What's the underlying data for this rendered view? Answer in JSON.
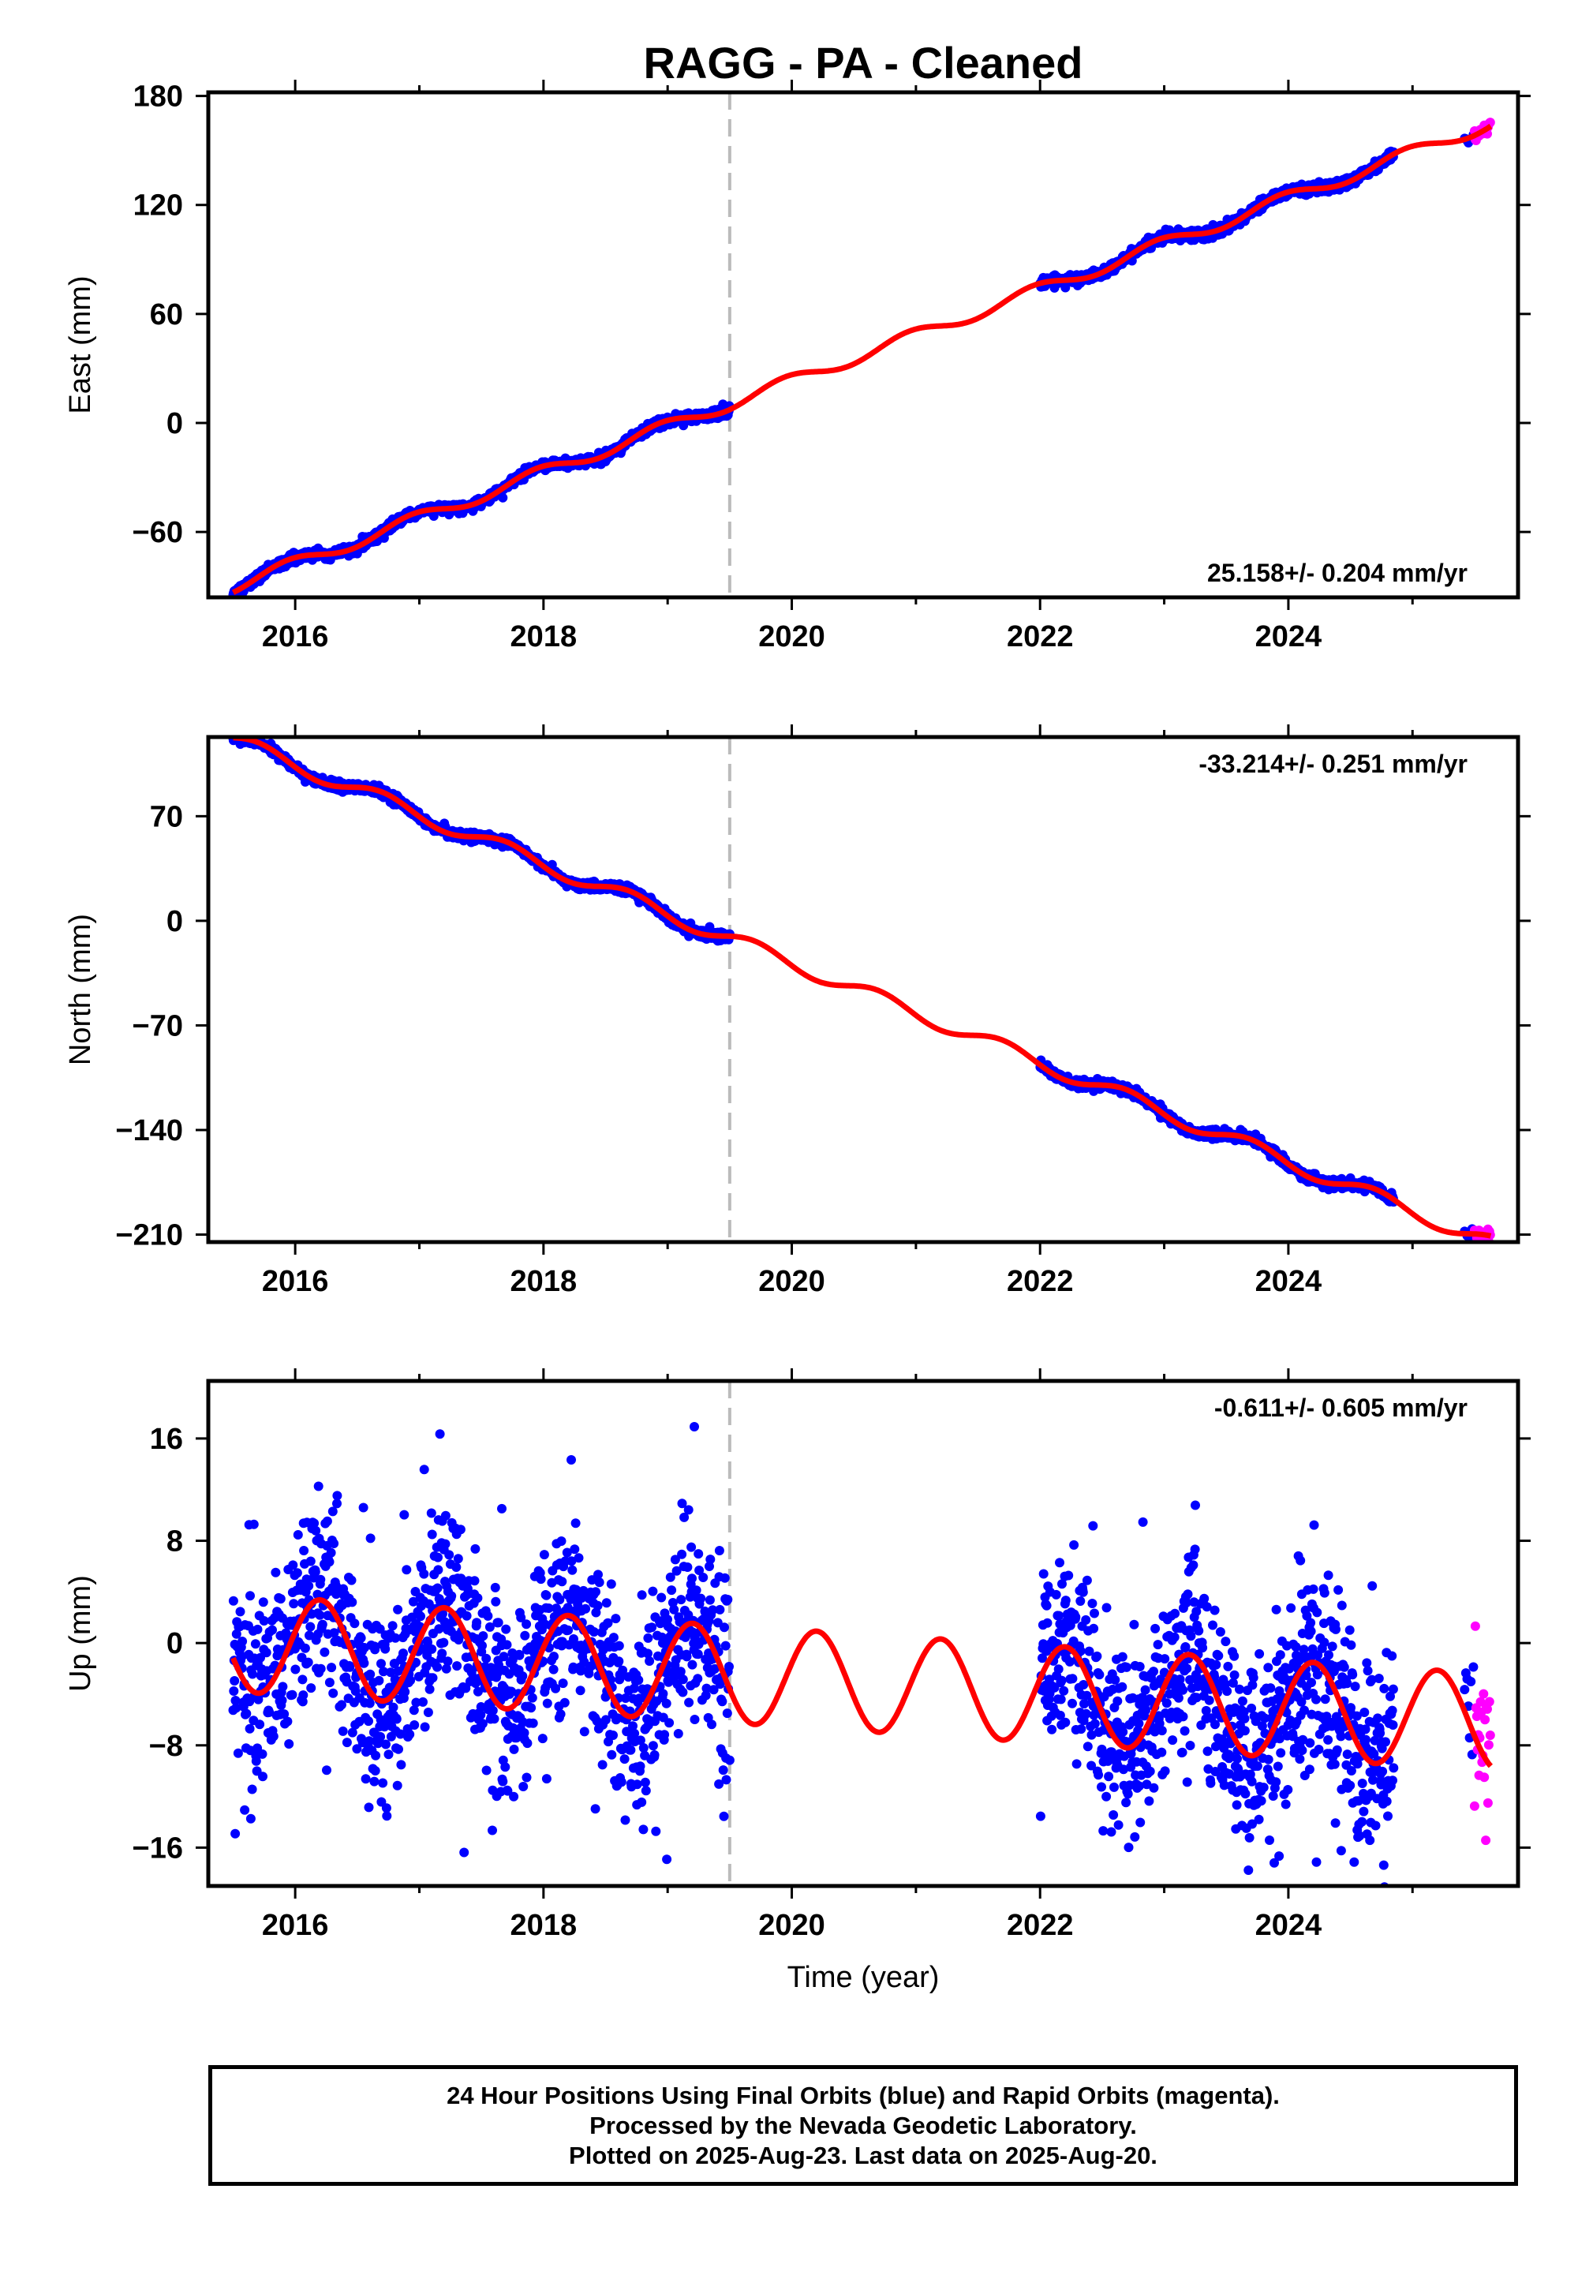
{
  "chart_data": [
    {
      "id": "east",
      "type": "scatter",
      "title": "RAGG  - PA - Cleaned",
      "ylabel": "East (mm)",
      "xlabel": "",
      "xlim": [
        2015.3,
        2025.85
      ],
      "ylim": [
        -96,
        182
      ],
      "yticks": [
        -60,
        0,
        60,
        120,
        180
      ],
      "xticks": [
        2016,
        2018,
        2020,
        2022,
        2024
      ],
      "rate_label": "25.158+/- 0.204 mm/yr",
      "rate_position": "bottom-right",
      "break_year": 2019.5,
      "grid": false,
      "trend": {
        "y0": -90,
        "x0": 2015.5,
        "rate": 25.158
      },
      "seasonal": {
        "amp": 3.5,
        "phase": 0.3
      },
      "noise_sd": 1.3,
      "gap": [
        2019.5,
        2022.0
      ],
      "final_range": [
        2015.5,
        2024.85
      ],
      "rapid_range": [
        2025.5,
        2025.63
      ],
      "series": [
        {
          "name": "Final Orbits",
          "color": "#0000ff",
          "kind": "points"
        },
        {
          "name": "Rapid Orbits",
          "color": "#ff00ff",
          "kind": "points"
        },
        {
          "name": "Model",
          "color": "#ff0000",
          "kind": "line"
        }
      ]
    },
    {
      "id": "north",
      "type": "scatter",
      "ylabel": "North (mm)",
      "xlabel": "",
      "xlim": [
        2015.3,
        2025.85
      ],
      "ylim": [
        -215,
        123
      ],
      "yticks": [
        -210,
        -140,
        -70,
        0,
        70
      ],
      "xticks": [
        2016,
        2018,
        2020,
        2022,
        2024
      ],
      "rate_label": "-33.214+/- 0.251 mm/yr",
      "rate_position": "top-right",
      "break_year": 2019.5,
      "grid": false,
      "trend": {
        "y0": 121,
        "x0": 2015.5,
        "rate": -33.214
      },
      "seasonal": {
        "amp": 5.0,
        "phase": 0.55
      },
      "noise_sd": 1.5,
      "gap": [
        2019.5,
        2022.0
      ],
      "final_range": [
        2015.5,
        2024.85
      ],
      "rapid_range": [
        2025.5,
        2025.63
      ],
      "series": [
        {
          "name": "Final Orbits",
          "color": "#0000ff",
          "kind": "points"
        },
        {
          "name": "Rapid Orbits",
          "color": "#ff00ff",
          "kind": "points"
        },
        {
          "name": "Model",
          "color": "#ff0000",
          "kind": "line"
        }
      ]
    },
    {
      "id": "up",
      "type": "scatter",
      "ylabel": "Up (mm)",
      "xlabel": "Time (year)",
      "xlim": [
        2015.3,
        2025.85
      ],
      "ylim": [
        -19,
        20.5
      ],
      "yticks": [
        -16,
        -8,
        0,
        8,
        16
      ],
      "xticks": [
        2016,
        2018,
        2020,
        2022,
        2024
      ],
      "rate_label": "-0.611+/- 0.605 mm/yr",
      "rate_position": "top-right",
      "break_year": 2019.5,
      "grid": false,
      "trend": {
        "y0": 0,
        "x0": 2015.5,
        "rate": -0.611
      },
      "seasonal": {
        "amp": 3.8,
        "phase": 0.05
      },
      "noise_sd": 3.6,
      "gap": [
        2019.5,
        2022.0
      ],
      "final_range": [
        2015.5,
        2024.85
      ],
      "rapid_range": [
        2025.5,
        2025.63
      ],
      "series": [
        {
          "name": "Final Orbits",
          "color": "#0000ff",
          "kind": "points"
        },
        {
          "name": "Rapid Orbits",
          "color": "#ff00ff",
          "kind": "points"
        },
        {
          "name": "Model",
          "color": "#ff0000",
          "kind": "line"
        }
      ]
    }
  ],
  "footer": {
    "line1": "24 Hour Positions Using Final Orbits (blue) and Rapid Orbits (magenta).",
    "line2": "Processed by the Nevada Geodetic Laboratory.",
    "line3": "Plotted on 2025-Aug-23. Last data on 2025-Aug-20."
  }
}
